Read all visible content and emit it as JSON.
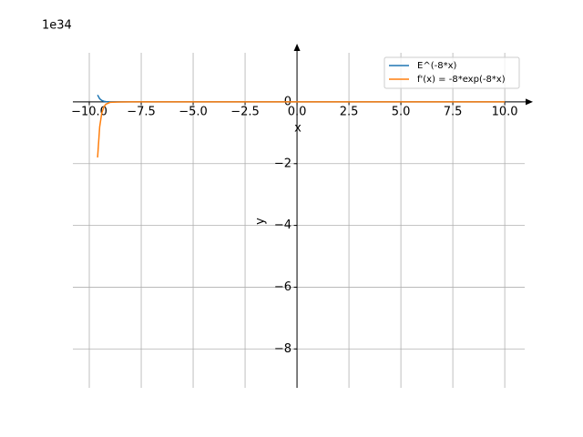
{
  "chart_data": {
    "type": "line",
    "offset_text": "1e34",
    "x_label": "x",
    "y_label": "y",
    "x": [
      -9.6,
      -9.5,
      -9.4,
      -9.3,
      -9.2,
      -9.0,
      -8.5,
      -8.0,
      -5.0,
      0.0,
      5.0,
      10.0
    ],
    "series": [
      {
        "name": "E^(-8*x)",
        "color": "#1f77b4",
        "values": [
          0.225,
          0.101,
          0.0455,
          0.0204,
          0.0092,
          0.00186,
          3.4e-05,
          0,
          0,
          0,
          0,
          0
        ]
      },
      {
        "name": "f'(x) = -8*exp(-8*x)",
        "color": "#ff7f0e",
        "values": [
          -1.8,
          -0.808,
          -0.364,
          -0.163,
          -0.0736,
          -0.0149,
          -0.00027,
          0,
          0,
          0,
          0,
          0
        ]
      }
    ],
    "xlim": [
      -10.79,
      10.96
    ],
    "ylim": [
      -9.26,
      1.59
    ],
    "xticks": [
      {
        "value": -10,
        "label": "−10.0"
      },
      {
        "value": -7.5,
        "label": "−7.5"
      },
      {
        "value": -5,
        "label": "−5.0"
      },
      {
        "value": -2.5,
        "label": "−2.5"
      },
      {
        "value": 0,
        "label": "0.0"
      },
      {
        "value": 2.5,
        "label": "2.5"
      },
      {
        "value": 5,
        "label": "5.0"
      },
      {
        "value": 7.5,
        "label": "7.5"
      },
      {
        "value": 10,
        "label": "10.0"
      }
    ],
    "yticks": [
      {
        "value": -8,
        "label": "−8"
      },
      {
        "value": -6,
        "label": "−6"
      },
      {
        "value": -4,
        "label": "−4"
      },
      {
        "value": -2,
        "label": "−2"
      },
      0
    ],
    "grid": true,
    "legend": "upper right"
  }
}
